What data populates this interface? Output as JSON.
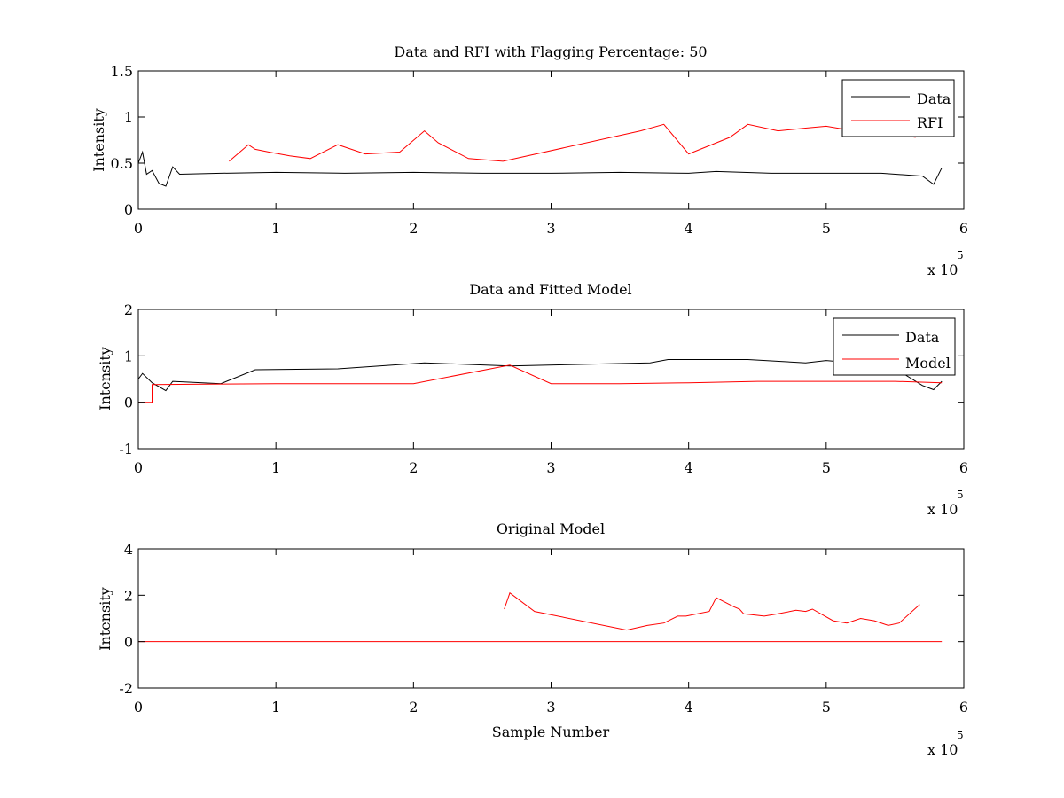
{
  "chart_data": [
    {
      "type": "line",
      "title": "Data and RFI with Flagging Percentage: 50",
      "xlabel": "",
      "ylabel": "Intensity",
      "xlim": [
        0,
        600000
      ],
      "ylim": [
        0,
        1.5
      ],
      "xticks": [
        0,
        1,
        2,
        3,
        4,
        5,
        6
      ],
      "xtick_labels": [
        "0",
        "1",
        "2",
        "3",
        "4",
        "5",
        "6"
      ],
      "xscale_label": "x 10",
      "xscale_exponent": "5",
      "yticks": [
        0,
        0.5,
        1,
        1.5
      ],
      "ytick_labels": [
        "0",
        "0.5",
        "1",
        "1.5"
      ],
      "legend_position": "top-right",
      "series": [
        {
          "name": "Data",
          "color": "#000000",
          "x": [
            0,
            3000,
            6000,
            10000,
            15000,
            20000,
            25000,
            30000,
            60000,
            100000,
            150000,
            200000,
            250000,
            300000,
            350000,
            400000,
            420000,
            440000,
            460000,
            500000,
            540000,
            570000,
            578000,
            584000
          ],
          "y": [
            0.5,
            0.62,
            0.38,
            0.42,
            0.28,
            0.25,
            0.46,
            0.38,
            0.39,
            0.4,
            0.39,
            0.4,
            0.39,
            0.39,
            0.4,
            0.39,
            0.41,
            0.4,
            0.39,
            0.39,
            0.39,
            0.36,
            0.27,
            0.45
          ]
        },
        {
          "name": "RFI",
          "color": "#ff0000",
          "x": [
            66000,
            80000,
            85000,
            95000,
            110000,
            125000,
            145000,
            165000,
            190000,
            208000,
            218000,
            240000,
            265000,
            365000,
            382000,
            400000,
            430000,
            443000,
            465000,
            485000,
            500000,
            520000,
            530000,
            545000,
            555000,
            565000
          ],
          "y": [
            0.52,
            0.7,
            0.65,
            0.62,
            0.58,
            0.55,
            0.7,
            0.6,
            0.62,
            0.85,
            0.72,
            0.55,
            0.52,
            0.85,
            0.92,
            0.6,
            0.78,
            0.92,
            0.85,
            0.88,
            0.9,
            0.85,
            0.8,
            0.82,
            0.8,
            0.78
          ]
        }
      ]
    },
    {
      "type": "line",
      "title": "Data and Fitted Model",
      "xlabel": "",
      "ylabel": "Intensity",
      "xlim": [
        0,
        600000
      ],
      "ylim": [
        -1,
        2
      ],
      "xticks": [
        0,
        1,
        2,
        3,
        4,
        5,
        6
      ],
      "xtick_labels": [
        "0",
        "1",
        "2",
        "3",
        "4",
        "5",
        "6"
      ],
      "xscale_label": "x 10",
      "xscale_exponent": "5",
      "yticks": [
        -1,
        0,
        1,
        2
      ],
      "ytick_labels": [
        "-1",
        "0",
        "1",
        "2"
      ],
      "legend_position": "top-right",
      "series": [
        {
          "name": "Data",
          "color": "#000000",
          "x": [
            0,
            3000,
            10000,
            20000,
            25000,
            60000,
            85000,
            145000,
            208000,
            270000,
            372000,
            385000,
            443000,
            467000,
            485000,
            500000,
            520000,
            545000,
            570000,
            578000,
            584000
          ],
          "y": [
            0.5,
            0.62,
            0.42,
            0.25,
            0.45,
            0.4,
            0.7,
            0.72,
            0.85,
            0.78,
            0.85,
            0.92,
            0.92,
            0.88,
            0.85,
            0.9,
            0.85,
            0.82,
            0.36,
            0.27,
            0.45
          ]
        },
        {
          "name": "Model",
          "color": "#ff0000",
          "x": [
            0,
            10000,
            10001,
            50000,
            100000,
            200000,
            270000,
            300000,
            350000,
            400000,
            450000,
            500000,
            550000,
            584000
          ],
          "y": [
            0.0,
            0.0,
            0.38,
            0.39,
            0.4,
            0.4,
            0.8,
            0.4,
            0.4,
            0.42,
            0.45,
            0.45,
            0.45,
            0.42
          ]
        }
      ]
    },
    {
      "type": "line",
      "title": "Original Model",
      "xlabel": "Sample Number",
      "ylabel": "Intensity",
      "xlim": [
        0,
        600000
      ],
      "ylim": [
        -2,
        4
      ],
      "xticks": [
        0,
        1,
        2,
        3,
        4,
        5,
        6
      ],
      "xtick_labels": [
        "0",
        "1",
        "2",
        "3",
        "4",
        "5",
        "6"
      ],
      "xscale_label": "x 10",
      "xscale_exponent": "5",
      "yticks": [
        -2,
        0,
        2,
        4
      ],
      "ytick_labels": [
        "-2",
        "0",
        "2",
        "4"
      ],
      "series": [
        {
          "name": "",
          "color": "#ff0000",
          "x": [
            266000,
            270000,
            288000,
            355000,
            370000,
            382000,
            392000,
            398000,
            415000,
            420000,
            433000,
            437000,
            440000,
            455000,
            465000,
            478000,
            485000,
            490000,
            505000,
            515000,
            525000,
            535000,
            545000,
            553000,
            568000
          ],
          "y": [
            1.4,
            2.1,
            1.3,
            0.5,
            0.7,
            0.8,
            1.1,
            1.1,
            1.3,
            1.9,
            1.5,
            1.4,
            1.2,
            1.1,
            1.2,
            1.35,
            1.3,
            1.4,
            0.9,
            0.8,
            1.0,
            0.9,
            0.7,
            0.8,
            1.6
          ]
        }
      ]
    }
  ]
}
